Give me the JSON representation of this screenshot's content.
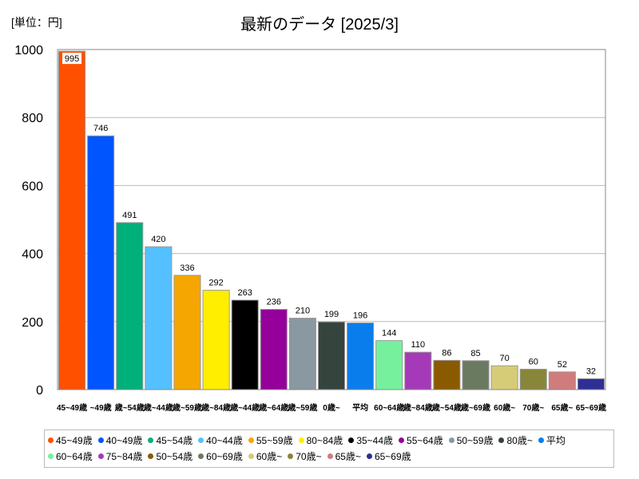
{
  "unit_label": "[単位：円]",
  "chart_data": {
    "type": "bar",
    "title": "最新のデータ [2025/3]",
    "xlabel": "",
    "ylabel": "",
    "ylim": [
      0,
      1000
    ],
    "yticks": [
      0,
      200,
      400,
      600,
      800,
      1000
    ],
    "grid": true,
    "legend_position": "bottom",
    "categories": [
      "45~49歳",
      "40~49歳",
      "45~54歳",
      "40~44歳",
      "55~59歳",
      "80~84歳",
      "35~44歳",
      "55~64歳",
      "50~59歳",
      "80歳~",
      "平均",
      "60~64歳",
      "75~84歳",
      "50~54歳",
      "60~69歳",
      "60歳~",
      "70歳~",
      "65歳~",
      "65~69歳"
    ],
    "tick_labels": [
      "45~49歳",
      "~49歳",
      "歳~54歳",
      "歳~44歳",
      "歳~59歳",
      "歳~84歳",
      "歳~44歳",
      "歳~64歳",
      "歳~59歳",
      "0歳~",
      "平均",
      "60~64歳",
      "歳~84歳",
      "歳~54歳",
      "歳~69歳",
      "60歳~",
      "70歳~",
      "65歳~",
      "65~69歳"
    ],
    "values": [
      995,
      746,
      491,
      420,
      336,
      292,
      263,
      236,
      210,
      199,
      196,
      144,
      110,
      86,
      85,
      70,
      60,
      52,
      32
    ],
    "colors": [
      "#ff5000",
      "#0055ff",
      "#00b07a",
      "#55c0ff",
      "#f5a600",
      "#ffee00",
      "#000000",
      "#95009b",
      "#8a98a2",
      "#36443e",
      "#0a7ded",
      "#77f09e",
      "#a53ab8",
      "#8a5a00",
      "#6a7a60",
      "#d6cb77",
      "#88863a",
      "#d07c7c",
      "#2e2e94"
    ]
  }
}
